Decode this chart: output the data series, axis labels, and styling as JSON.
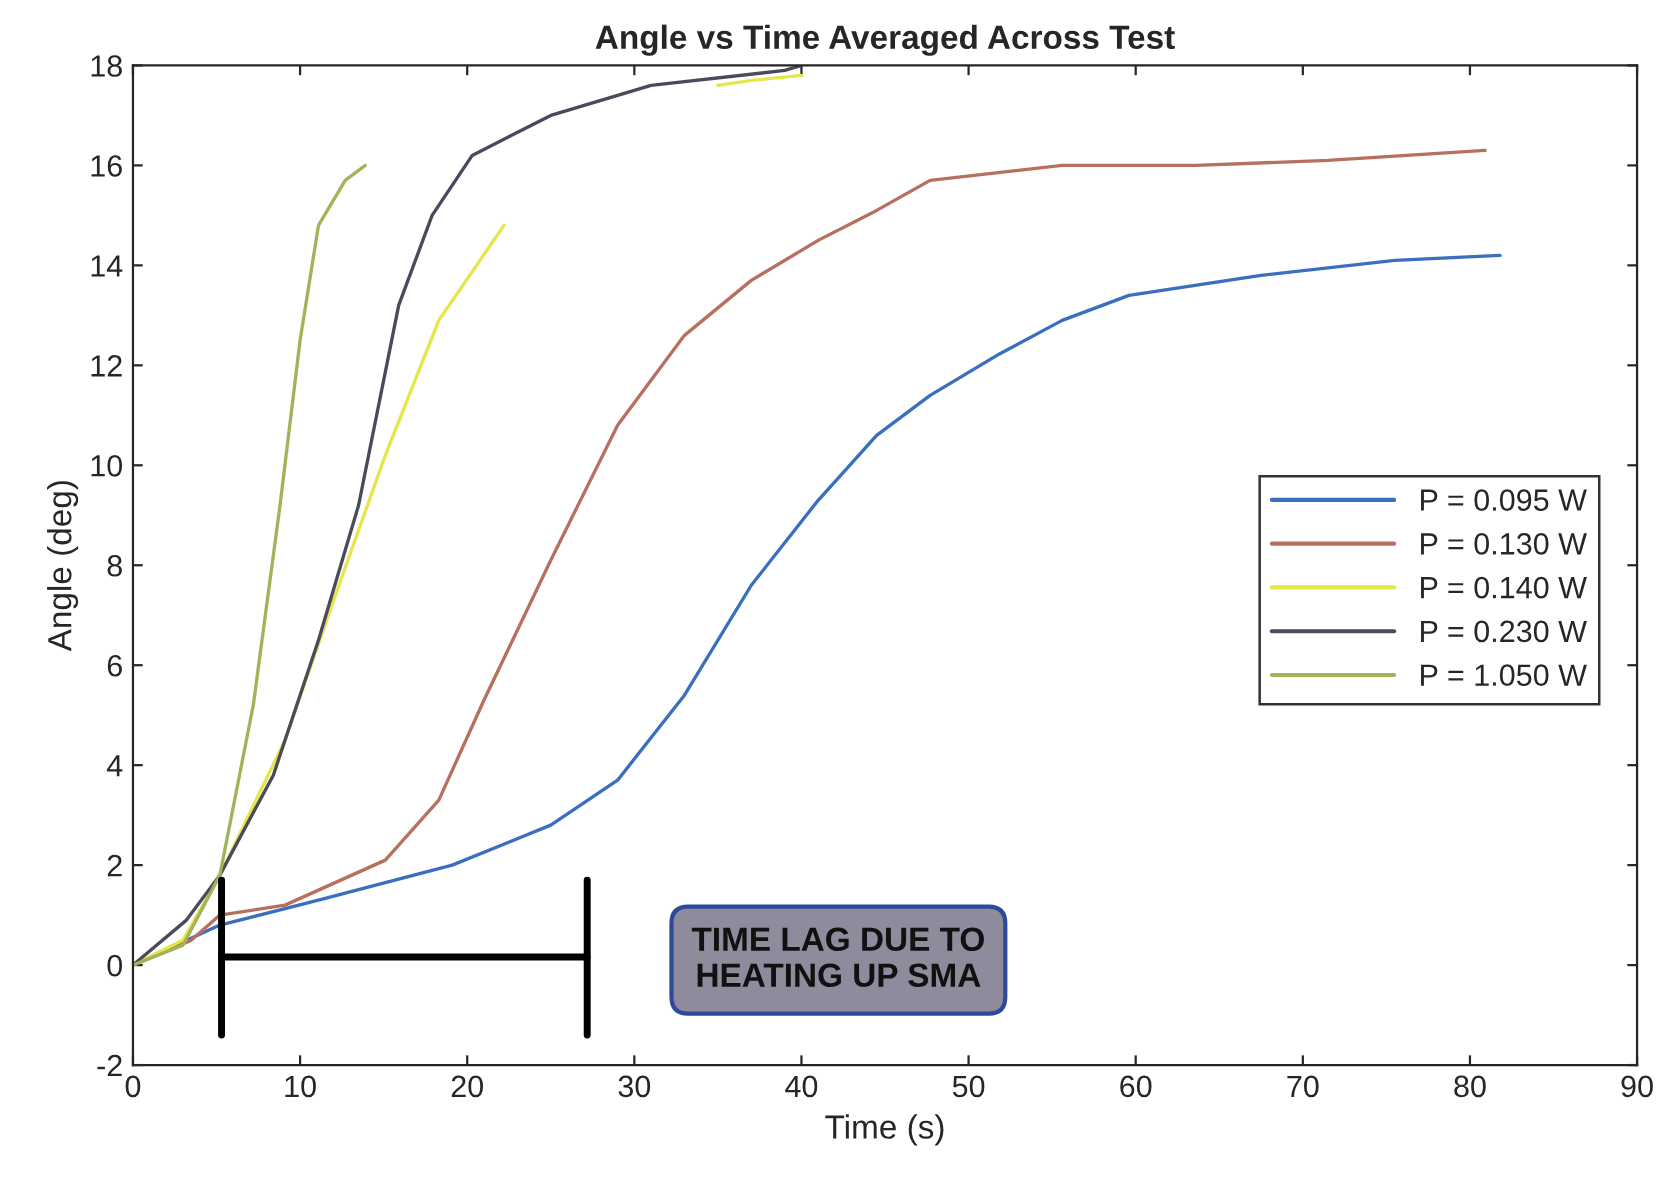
{
  "chart_data": {
    "type": "line",
    "title": "Angle vs Time Averaged Across Test",
    "xlabel": "Time (s)",
    "ylabel": "Angle (deg)",
    "xlim": [
      0,
      90
    ],
    "xticks": [
      0,
      10,
      20,
      30,
      40,
      50,
      60,
      70,
      80,
      90
    ],
    "ylim": [
      -2,
      18
    ],
    "yticks": [
      -2,
      0,
      2,
      4,
      6,
      8,
      10,
      12,
      14,
      16,
      18
    ],
    "grid": false,
    "legend": "right",
    "marker": "none",
    "line_style": "solid",
    "annotations": [
      "TIME LAG DUE TO\nHEATING UP SMA"
    ],
    "series": [
      {
        "name": "P = 0.095 W",
        "color": "#3a6fc0",
        "x": [
          0,
          5.2,
          11.1,
          19.1,
          25,
          29,
          33,
          37,
          41,
          44.5,
          47.7,
          51.7,
          55.6,
          59.6,
          67.5,
          75.5,
          81.8
        ],
        "values": [
          0,
          0.8,
          1.3,
          2.0,
          2.8,
          3.7,
          5.4,
          7.6,
          9.3,
          10.6,
          11.4,
          12.2,
          12.9,
          13.4,
          13.8,
          14.1,
          14.2
        ]
      },
      {
        "name": "P = 0.130 W",
        "color": "#b8705e",
        "x": [
          0,
          3.5,
          5.2,
          9.1,
          15.1,
          18.3,
          21,
          25,
          29,
          33,
          37,
          41,
          44.5,
          47.7,
          55.6,
          63.6,
          71.5,
          80.9
        ],
        "values": [
          0,
          0.5,
          1.0,
          1.2,
          2.1,
          3.3,
          5.3,
          8.1,
          10.8,
          12.6,
          13.7,
          14.5,
          15.1,
          15.7,
          16.0,
          16.0,
          16.1,
          16.3
        ]
      },
      {
        "name": "P = 0.140 W",
        "color": "#e6e64a",
        "x": [
          0,
          3,
          5.2,
          9.1,
          11.9,
          15.1,
          18.3,
          22.2,
          28,
          35,
          37,
          40
        ],
        "values": [
          0,
          0.5,
          1.8,
          4.5,
          7.2,
          10.2,
          12.9,
          14.8,
          null,
          17.6,
          17.7,
          17.8
        ]
      },
      {
        "name": "P = 0.230 W",
        "color": "#4a4a5c",
        "x": [
          0,
          3.2,
          5.2,
          8.4,
          11.1,
          13.5,
          15.9,
          17.9,
          20.3,
          25,
          31,
          39,
          40
        ],
        "values": [
          0,
          0.9,
          1.8,
          3.8,
          6.5,
          9.2,
          13.2,
          15.0,
          16.2,
          17.0,
          17.6,
          17.9,
          18
        ]
      },
      {
        "name": "P = 1.050 W",
        "color": "#a3b35a",
        "x": [
          0,
          3,
          5.2,
          7.2,
          8.8,
          10,
          11.1,
          12.7,
          13.9
        ],
        "values": [
          0,
          0.4,
          1.8,
          5.2,
          9.2,
          12.5,
          14.8,
          15.7,
          16.0
        ]
      }
    ]
  }
}
